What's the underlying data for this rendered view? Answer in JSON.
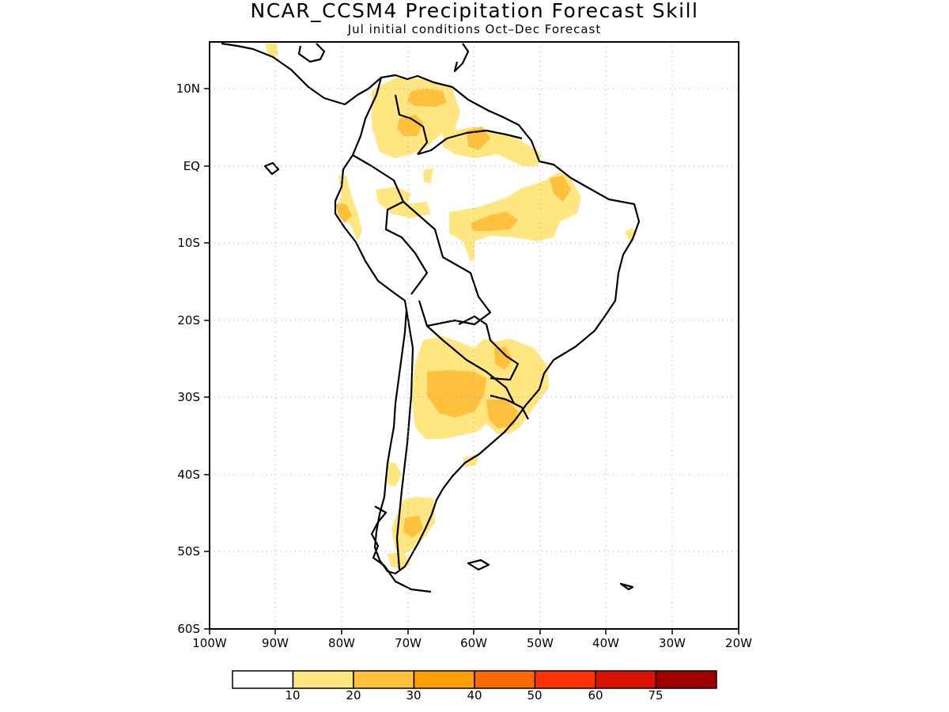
{
  "title": "NCAR_CCSM4 Precipitation Forecast Skill",
  "subtitle": "Jul initial conditions   Oct–Dec Forecast",
  "map": {
    "region": "South America",
    "lon_range": [
      -100,
      -20
    ],
    "lat_range": [
      -60,
      16
    ],
    "grid": "dotted",
    "lat_labels": [
      "10N",
      "EQ",
      "10S",
      "20S",
      "30S",
      "40S",
      "50S",
      "60S"
    ],
    "lon_labels": [
      "100W",
      "90W",
      "80W",
      "70W",
      "60W",
      "50W",
      "40W",
      "30W",
      "20W"
    ]
  },
  "colorbar": {
    "tick_labels": [
      "10",
      "20",
      "30",
      "40",
      "50",
      "60",
      "75"
    ],
    "colors": [
      "#ffffff",
      "#ffe680",
      "#ffc03e",
      "#ffa000",
      "#ff6a00",
      "#ff3200",
      "#dc1200",
      "#a00000"
    ]
  }
}
